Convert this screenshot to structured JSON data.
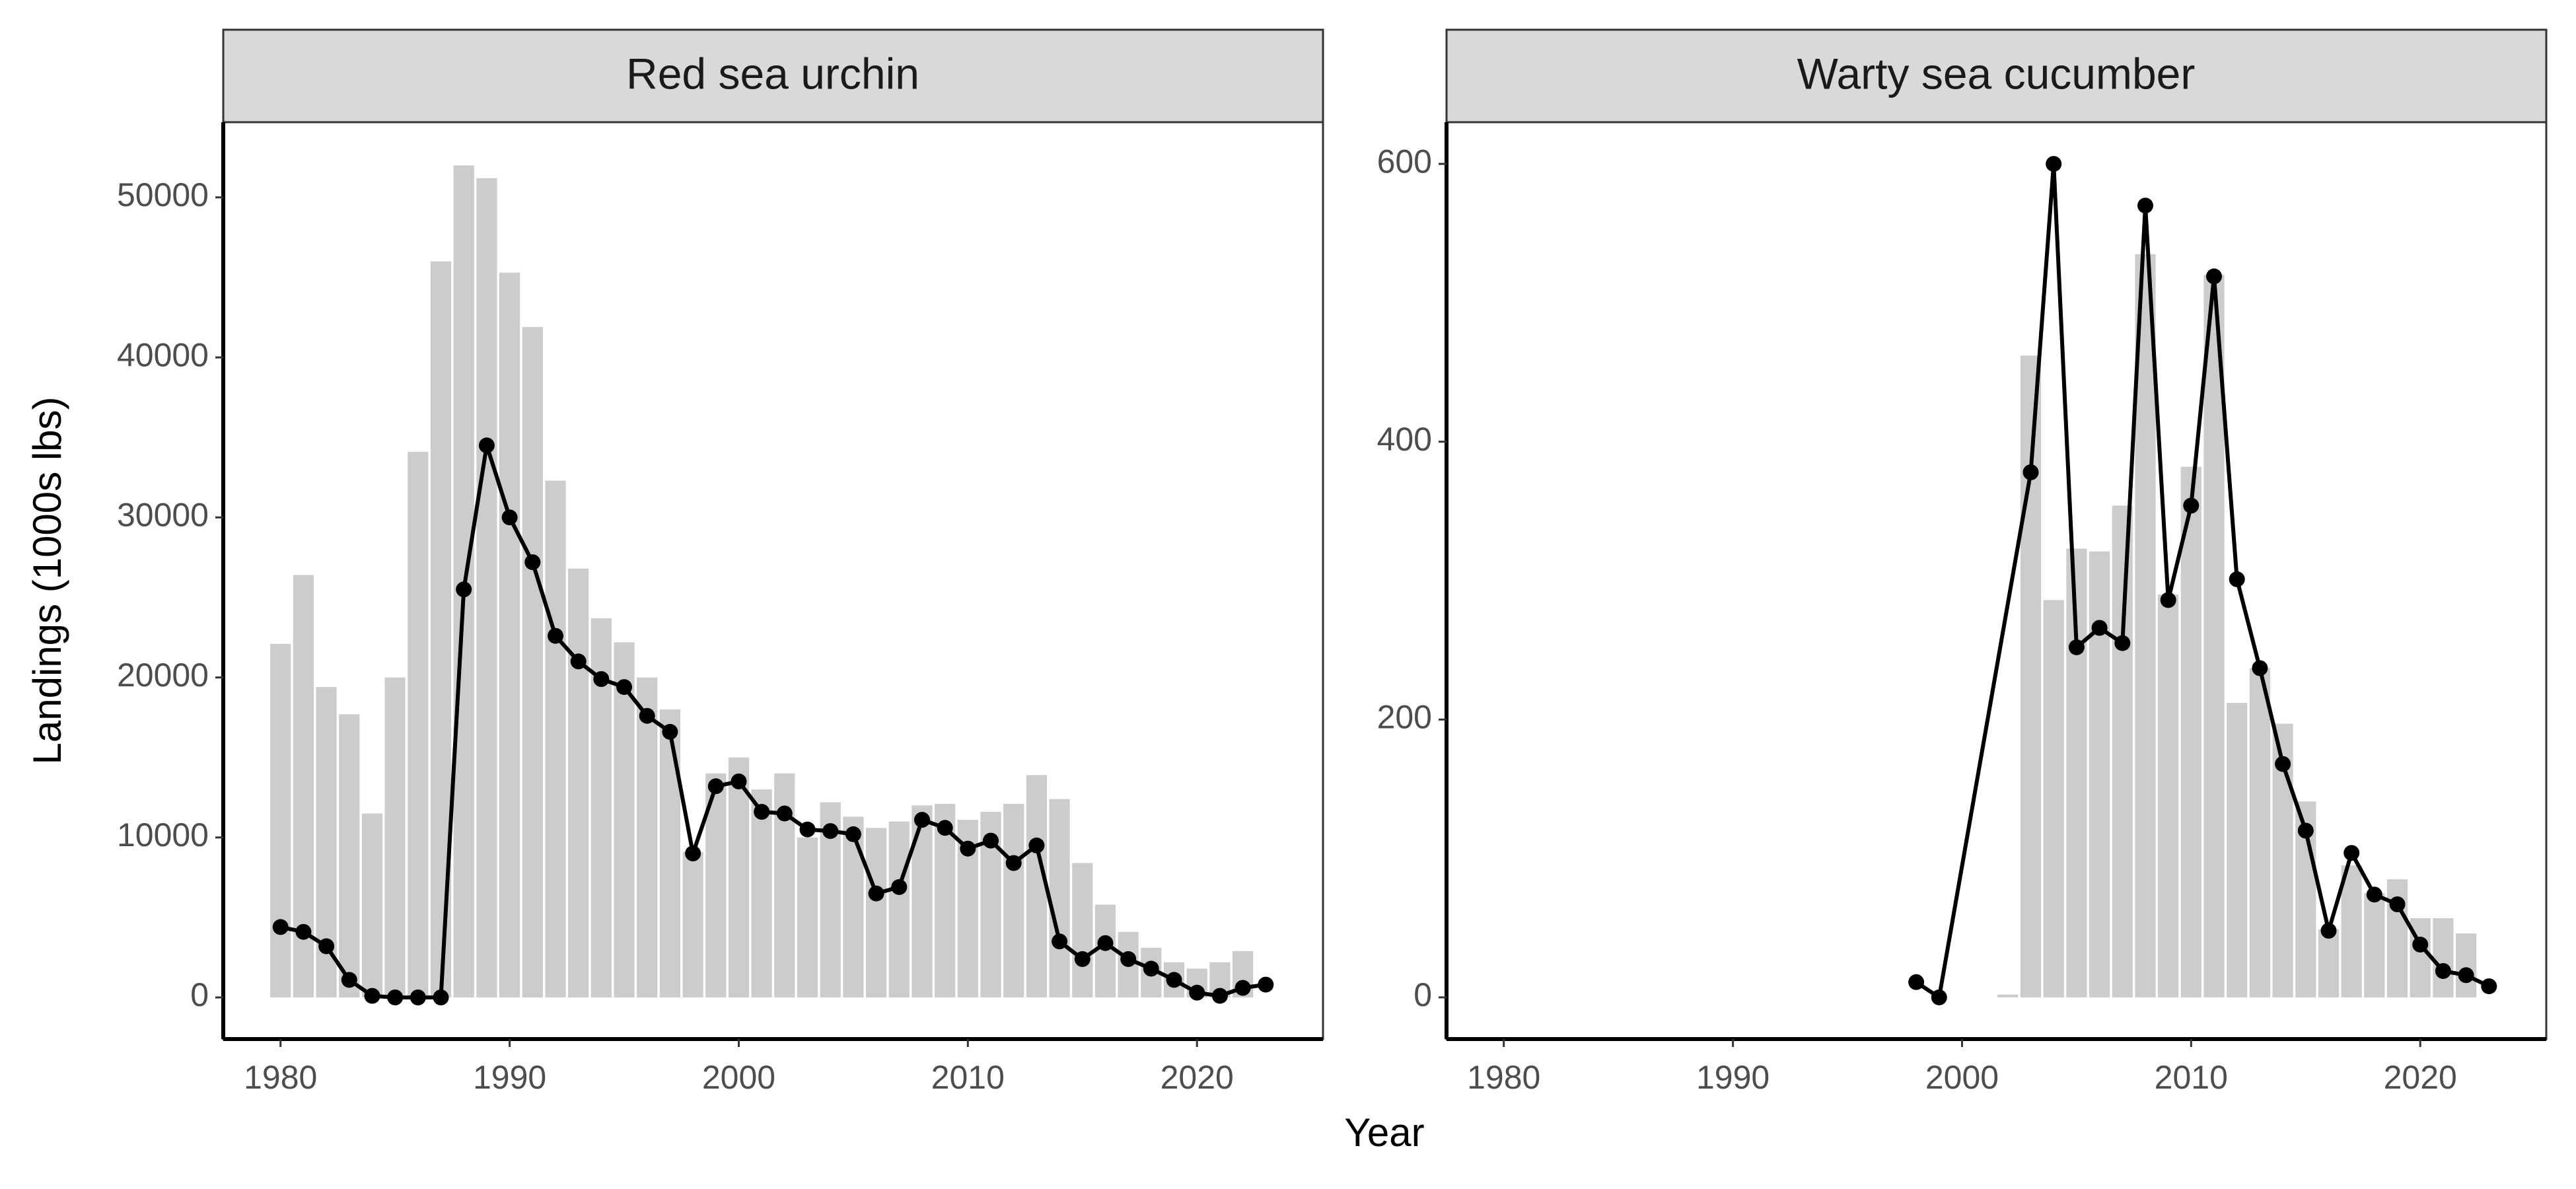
{
  "chart_data": {
    "type": "bar",
    "xlabel": "Year",
    "ylabel": "Landings (1000s lbs)",
    "colors": {
      "bar": "#cccccc",
      "line": "#000000",
      "strip": "#d9d9d9"
    },
    "grid": false,
    "legend": "none",
    "panels": [
      {
        "strip": "Red sea urchin",
        "xlim": [
          1977.5,
          2025.5
        ],
        "ylim": [
          -2600,
          54700
        ],
        "xticks": [
          1980,
          1990,
          2000,
          2010,
          2020
        ],
        "yticks": [
          0,
          10000,
          20000,
          30000,
          40000,
          50000
        ],
        "bars": {
          "x": [
            1980,
            1981,
            1982,
            1983,
            1984,
            1985,
            1986,
            1987,
            1988,
            1989,
            1990,
            1991,
            1992,
            1993,
            1994,
            1995,
            1996,
            1997,
            1998,
            1999,
            2000,
            2001,
            2002,
            2003,
            2004,
            2005,
            2006,
            2007,
            2008,
            2009,
            2010,
            2011,
            2012,
            2013,
            2014,
            2015,
            2016,
            2017,
            2018,
            2019,
            2020,
            2021,
            2022,
            2023
          ],
          "values": [
            22100,
            26400,
            19400,
            17700,
            11500,
            20000,
            34100,
            46000,
            52000,
            51200,
            45300,
            41900,
            32300,
            26800,
            23700,
            22200,
            20000,
            18000,
            9100,
            14000,
            15000,
            13000,
            14000,
            10000,
            12200,
            11300,
            10600,
            11000,
            12000,
            12100,
            11100,
            11600,
            12100,
            13900,
            12400,
            8400,
            5800,
            4100,
            3100,
            2200,
            1800,
            2200,
            2900,
            0
          ]
        },
        "line": {
          "x": [
            1980,
            1981,
            1982,
            1983,
            1984,
            1985,
            1986,
            1987,
            1988,
            1989,
            1990,
            1991,
            1992,
            1993,
            1994,
            1995,
            1996,
            1997,
            1998,
            1999,
            2000,
            2001,
            2002,
            2003,
            2004,
            2005,
            2006,
            2007,
            2008,
            2009,
            2010,
            2011,
            2012,
            2013,
            2014,
            2015,
            2016,
            2017,
            2018,
            2019,
            2020,
            2021,
            2022,
            2023
          ],
          "values": [
            4400,
            4100,
            3200,
            1100,
            100,
            0,
            0,
            0,
            25500,
            34500,
            30000,
            27200,
            22600,
            21000,
            19900,
            19400,
            17600,
            16600,
            9000,
            13200,
            13500,
            11600,
            11500,
            10500,
            10400,
            10200,
            6500,
            6900,
            11100,
            10600,
            9300,
            9800,
            8400,
            9500,
            3500,
            2400,
            3400,
            2400,
            1800,
            1100,
            300,
            100,
            600,
            800
          ]
        }
      },
      {
        "strip": "Warty sea cucumber",
        "xlim": [
          1977.5,
          2025.5
        ],
        "ylim": [
          -30,
          630
        ],
        "xticks": [
          1980,
          1990,
          2000,
          2010,
          2020
        ],
        "yticks": [
          0,
          200,
          400,
          600
        ],
        "bars": {
          "x": [
            2002,
            2003,
            2004,
            2005,
            2006,
            2007,
            2008,
            2009,
            2010,
            2011,
            2012,
            2013,
            2014,
            2015,
            2016,
            2017,
            2018,
            2019,
            2020,
            2021,
            2022
          ],
          "values": [
            2,
            462,
            286,
            323,
            321,
            354,
            535,
            290,
            382,
            520,
            212,
            237,
            197,
            141,
            49,
            95,
            75,
            85,
            57,
            57,
            46
          ]
        },
        "line": {
          "x": [
            1998,
            1999,
            2003,
            2004,
            2005,
            2006,
            2007,
            2008,
            2009,
            2010,
            2011,
            2012,
            2013,
            2014,
            2015,
            2016,
            2017,
            2018,
            2019,
            2020,
            2021,
            2022,
            2023
          ],
          "values": [
            11,
            0,
            378,
            600,
            252,
            266,
            255,
            570,
            286,
            354,
            519,
            301,
            237,
            168,
            120,
            48,
            104,
            74,
            67,
            38,
            19,
            16,
            8
          ]
        }
      }
    ]
  }
}
